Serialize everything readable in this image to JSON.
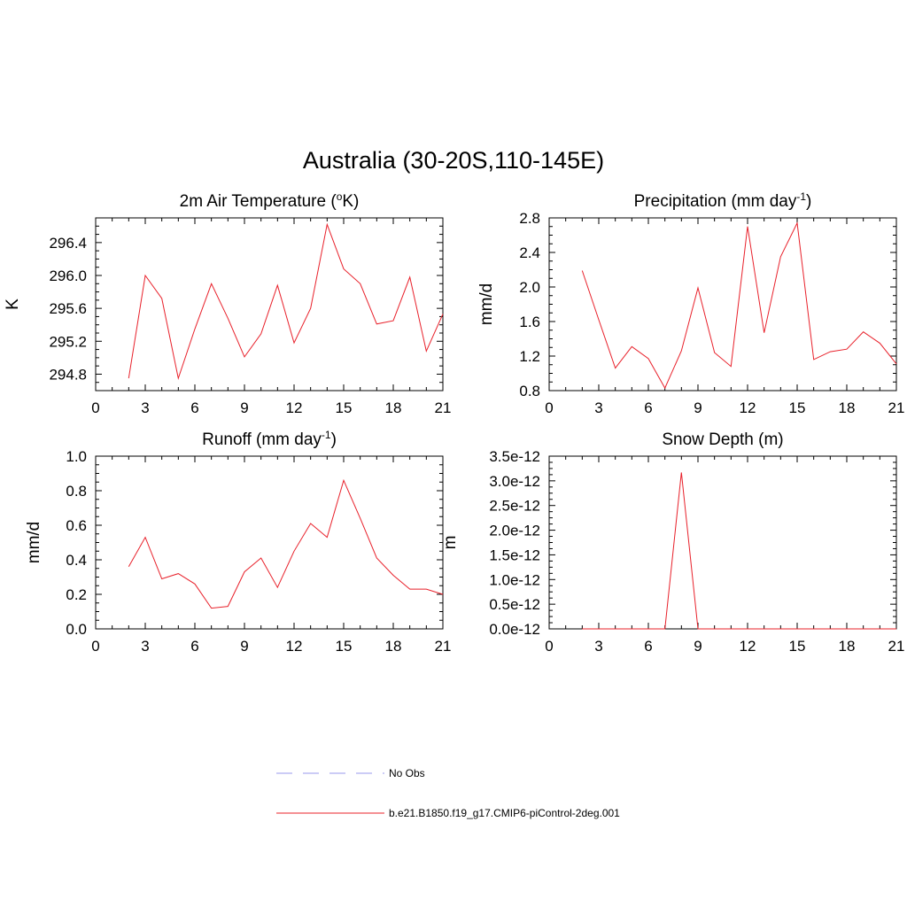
{
  "title": "Australia (30-20S,110-145E)",
  "colors": {
    "model": "#e8202a",
    "obs": "#9999ee",
    "axis": "#000000"
  },
  "legend": {
    "items": [
      {
        "label": "No Obs",
        "style": "dashed",
        "color": "#9999ee"
      },
      {
        "label": "b.e21.B1850.f19_g17.CMIP6-piControl-2deg.001",
        "style": "solid",
        "color": "#e8202a"
      }
    ]
  },
  "chart_data": [
    {
      "type": "line",
      "title": "2m Air Temperature (",
      "title_sup": "o",
      "title_post": "K)",
      "ylabel": "K",
      "xlim": [
        0,
        21
      ],
      "ylim": [
        294.6,
        296.7
      ],
      "xticks": [
        0,
        3,
        6,
        9,
        12,
        15,
        18,
        21
      ],
      "yticks": [
        294.8,
        295.2,
        295.6,
        296.0,
        296.4
      ],
      "ytick_labels": [
        "294.8",
        "295.2",
        "295.6",
        "296.0",
        "296.4"
      ],
      "series": [
        {
          "x": [
            2,
            3,
            4,
            5,
            6,
            7,
            8,
            9,
            10,
            11,
            12,
            13,
            14,
            15,
            16,
            17,
            18,
            19,
            20,
            21
          ],
          "values": [
            294.75,
            296.0,
            295.72,
            294.75,
            295.35,
            295.9,
            295.48,
            295.01,
            295.29,
            295.88,
            295.18,
            295.6,
            296.62,
            296.08,
            295.9,
            295.41,
            295.45,
            295.98,
            295.08,
            295.53
          ]
        }
      ]
    },
    {
      "type": "line",
      "title": "Precipitation (mm day",
      "title_sup": "-1",
      "title_post": ")",
      "ylabel": "mm/d",
      "xlim": [
        0,
        21
      ],
      "ylim": [
        0.8,
        2.8
      ],
      "xticks": [
        0,
        3,
        6,
        9,
        12,
        15,
        18,
        21
      ],
      "yticks": [
        0.8,
        1.2,
        1.6,
        2.0,
        2.4,
        2.8
      ],
      "ytick_labels": [
        "0.8",
        "1.2",
        "1.6",
        "2.0",
        "2.4",
        "2.8"
      ],
      "series": [
        {
          "x": [
            2,
            3,
            4,
            5,
            6,
            7,
            8,
            9,
            10,
            11,
            12,
            13,
            14,
            15,
            16,
            17,
            18,
            19,
            20,
            21
          ],
          "values": [
            2.19,
            1.62,
            1.06,
            1.31,
            1.17,
            0.83,
            1.26,
            1.99,
            1.24,
            1.08,
            2.7,
            1.47,
            2.35,
            2.74,
            1.16,
            1.25,
            1.28,
            1.48,
            1.35,
            1.11
          ]
        }
      ]
    },
    {
      "type": "line",
      "title": "Runoff (mm day",
      "title_sup": "-1",
      "title_post": ")",
      "ylabel": "mm/d",
      "xlim": [
        0,
        21
      ],
      "ylim": [
        0.0,
        1.0
      ],
      "xticks": [
        0,
        3,
        6,
        9,
        12,
        15,
        18,
        21
      ],
      "yticks": [
        0.0,
        0.2,
        0.4,
        0.6,
        0.8,
        1.0
      ],
      "ytick_labels": [
        "0.0",
        "0.2",
        "0.4",
        "0.6",
        "0.8",
        "1.0"
      ],
      "series": [
        {
          "x": [
            2,
            3,
            4,
            5,
            6,
            7,
            8,
            9,
            10,
            11,
            12,
            13,
            14,
            15,
            16,
            17,
            18,
            19,
            20,
            21
          ],
          "values": [
            0.36,
            0.53,
            0.29,
            0.32,
            0.26,
            0.12,
            0.13,
            0.33,
            0.41,
            0.24,
            0.45,
            0.61,
            0.53,
            0.86,
            0.64,
            0.41,
            0.31,
            0.23,
            0.23,
            0.2
          ]
        }
      ]
    },
    {
      "type": "line",
      "title": "Snow Depth (m)",
      "title_sup": "",
      "title_post": "",
      "ylabel": "m",
      "xlim": [
        0,
        21
      ],
      "ylim": [
        0.0,
        3.5e-12
      ],
      "xticks": [
        0,
        3,
        6,
        9,
        12,
        15,
        18,
        21
      ],
      "yticks": [
        0.0,
        5e-13,
        1e-12,
        1.5e-12,
        2e-12,
        2.5e-12,
        3e-12,
        3.5e-12
      ],
      "ytick_labels": [
        "0.0e-12",
        "0.5e-12",
        "1.0e-12",
        "1.5e-12",
        "2.0e-12",
        "2.5e-12",
        "3.0e-12",
        "3.5e-12"
      ],
      "series": [
        {
          "x": [
            2,
            3,
            4,
            5,
            6,
            7,
            8,
            9,
            10,
            11,
            12,
            13,
            14,
            15,
            16,
            17,
            18,
            19,
            20,
            21
          ],
          "values": [
            0,
            0,
            0,
            0,
            0,
            0,
            3.17e-12,
            0,
            0,
            0,
            0,
            0,
            0,
            0,
            0,
            0,
            0,
            0,
            0,
            0
          ]
        }
      ]
    }
  ]
}
